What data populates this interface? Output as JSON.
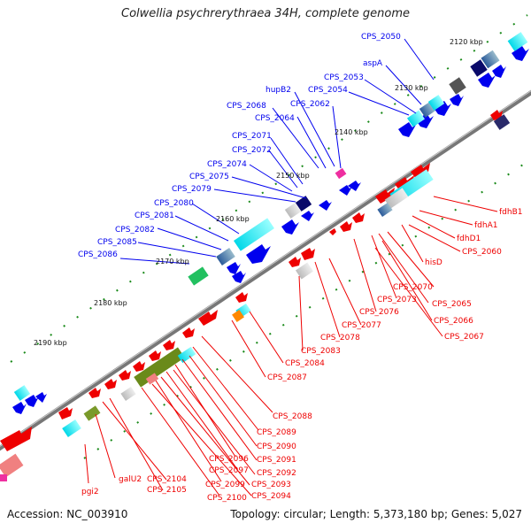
{
  "title": "Colwellia psychrerythraea 34H, complete genome",
  "footer": {
    "accession": "Accession: NC_003910",
    "summary": "Topology: circular; Length: 5,373,180 bp; Genes: 5,027"
  },
  "colors": {
    "forward": "#0000ee",
    "reverse": "#ee0000",
    "backbone": "#888888",
    "ticks": "#007700"
  },
  "kbp_ticks": [
    "2120 kbp",
    "2130 kbp",
    "2140 kbp",
    "2150 kbp",
    "2160 kbp",
    "2170 kbp",
    "2180 kbp",
    "2190 kbp"
  ],
  "labels_top": [
    "CPS_2050",
    "aspA",
    "CPS_2053",
    "hupB2",
    "CPS_2054",
    "CPS_2068",
    "CPS_2062",
    "CPS_2064",
    "CPS_2071",
    "CPS_2072",
    "CPS_2074",
    "CPS_2075",
    "CPS_2079",
    "CPS_2080",
    "CPS_2081",
    "CPS_2082",
    "CPS_2085",
    "CPS_2086"
  ],
  "labels_right": [
    "fdhB1",
    "fdhA1",
    "fdhD1",
    "CPS_2060",
    "hisD",
    "CPS_2070",
    "CPS_2065",
    "CPS_2073",
    "CPS_2066",
    "CPS_2076",
    "CPS_2067",
    "CPS_2077",
    "CPS_2078",
    "CPS_2083",
    "CPS_2084",
    "CPS_2087"
  ],
  "labels_bottom": [
    "CPS_2088",
    "CPS_2089",
    "CPS_2090",
    "CPS_2091",
    "CPS_2096",
    "CPS_2092",
    "CPS_2097",
    "CPS_2093",
    "CPS_2099",
    "CPS_2094",
    "CPS_2100",
    "CPS_2104",
    "CPS_2105",
    "galU2",
    "pgi2"
  ]
}
